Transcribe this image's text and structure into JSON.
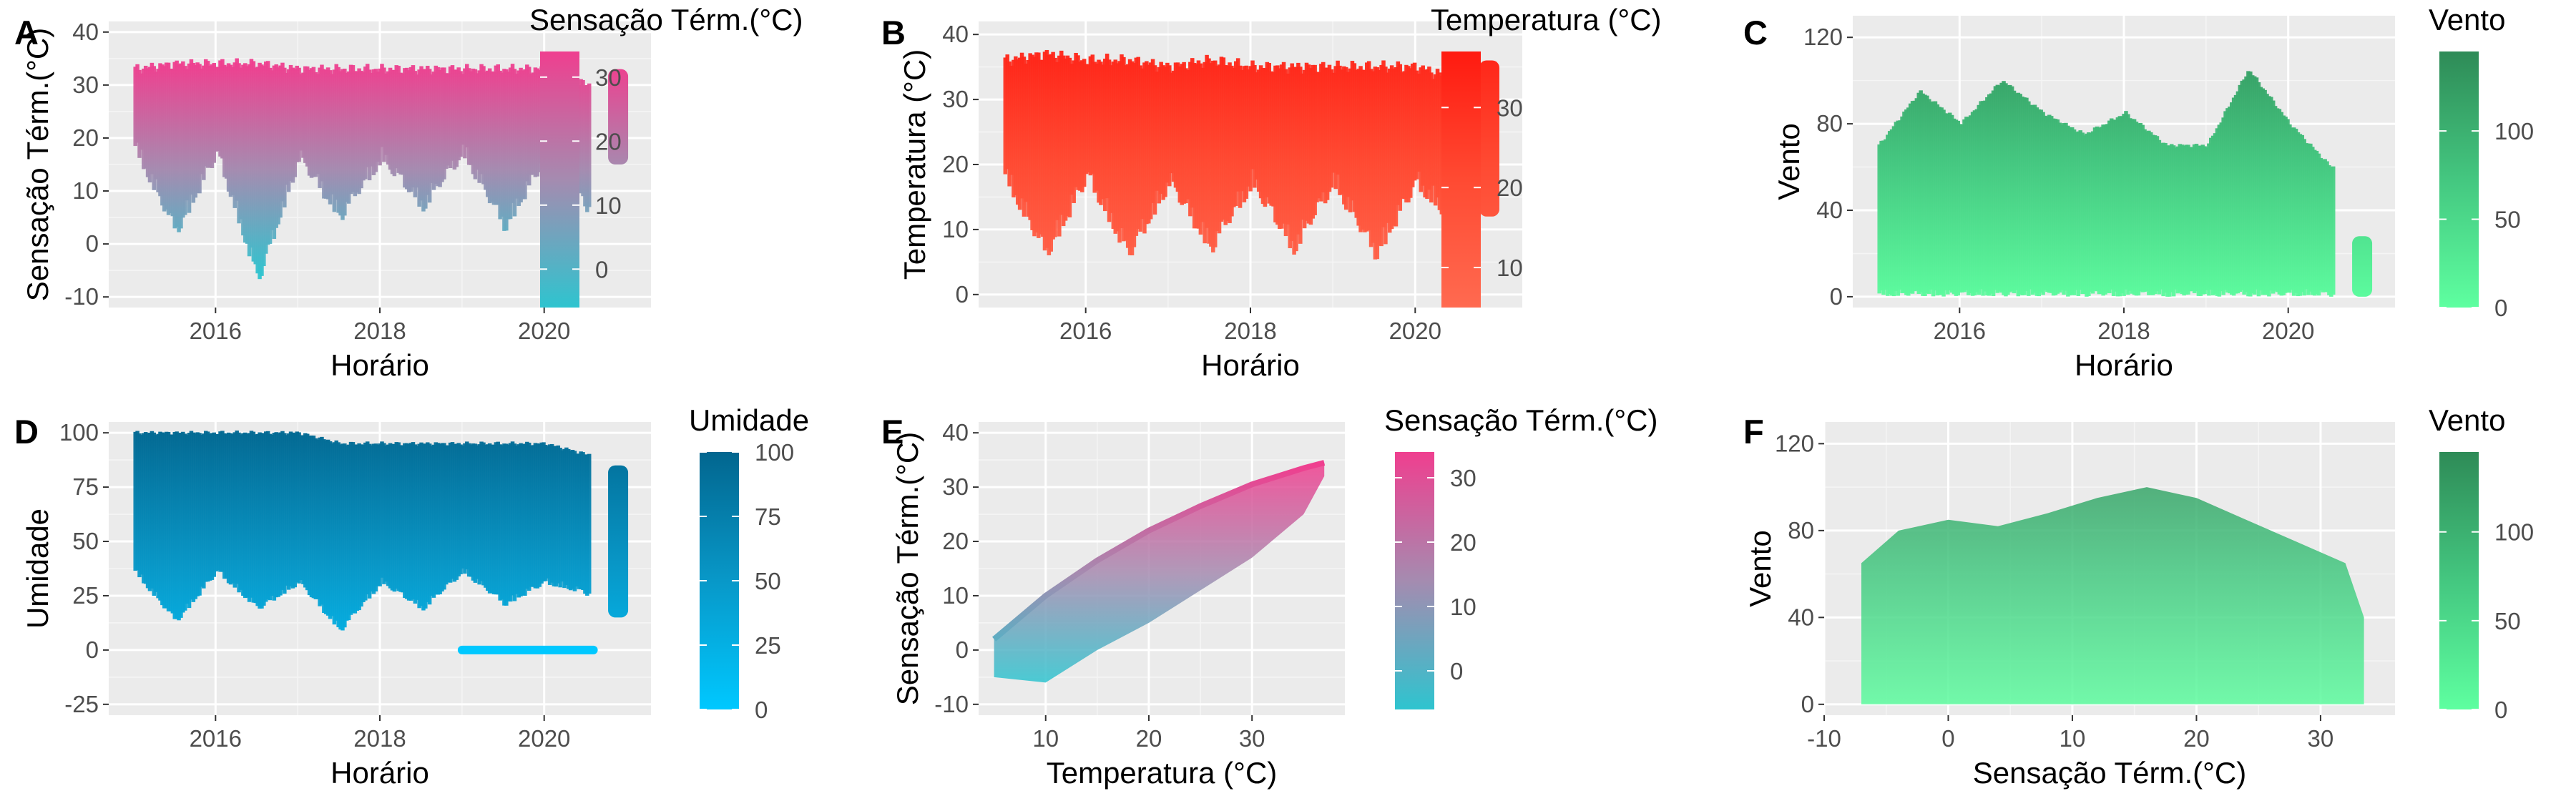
{
  "chart_data": [
    {
      "tag": "A",
      "type": "scatter",
      "xlabel": "Horário",
      "ylabel": "Sensação Térm.(°C)",
      "xlim": [
        2014.7,
        2021.3
      ],
      "ylim": [
        -12,
        42
      ],
      "xticks": [
        2016,
        2018,
        2020
      ],
      "yticks": [
        -10,
        0,
        10,
        20,
        30,
        40
      ],
      "legend": {
        "title": "Sensação Térm.(°C)",
        "position": "right",
        "range": [
          -6,
          34
        ],
        "ticks": [
          0,
          10,
          20,
          30
        ],
        "low_color": "#2ec4cf",
        "mid_color": "#a58bb0",
        "high_color": "#ef3f8f"
      },
      "band": [
        [
          2015.0,
          17,
          33
        ],
        [
          2015.5,
          1,
          34
        ],
        [
          2016.0,
          16,
          34
        ],
        [
          2016.5,
          -8,
          34
        ],
        [
          2017.0,
          15,
          33
        ],
        [
          2017.5,
          4,
          33
        ],
        [
          2018.0,
          15,
          33
        ],
        [
          2018.5,
          6,
          33
        ],
        [
          2019.0,
          16,
          33
        ],
        [
          2019.5,
          2,
          33
        ],
        [
          2020.0,
          15,
          33
        ],
        [
          2020.5,
          6,
          30
        ],
        [
          2020.9,
          15,
          33
        ]
      ],
      "gap": [
        2020.55,
        2020.8
      ]
    },
    {
      "tag": "B",
      "type": "scatter",
      "xlabel": "Horário",
      "ylabel": "Temperatura (°C)",
      "xlim": [
        2014.7,
        2021.3
      ],
      "ylim": [
        -2,
        42
      ],
      "xticks": [
        2016,
        2018,
        2020
      ],
      "yticks": [
        0,
        10,
        20,
        30,
        40
      ],
      "legend": {
        "title": "Temperatura (°C)",
        "position": "right",
        "range": [
          5,
          37
        ],
        "ticks": [
          10,
          20,
          30
        ],
        "low_color": "#ff6a50",
        "mid_color": "#ff4a32",
        "high_color": "#ff1a10"
      },
      "band": [
        [
          2015.0,
          17,
          36
        ],
        [
          2015.5,
          5,
          37
        ],
        [
          2016.0,
          17,
          36
        ],
        [
          2016.5,
          5,
          36
        ],
        [
          2017.0,
          16,
          35
        ],
        [
          2017.5,
          6,
          36
        ],
        [
          2018.0,
          16,
          35
        ],
        [
          2018.5,
          6,
          35
        ],
        [
          2019.0,
          16,
          35
        ],
        [
          2019.5,
          5,
          35
        ],
        [
          2020.0,
          16,
          35
        ],
        [
          2020.5,
          9,
          33
        ],
        [
          2020.9,
          12,
          36
        ]
      ],
      "gap": [
        2020.55,
        2020.8
      ]
    },
    {
      "tag": "C",
      "type": "scatter",
      "xlabel": "Horário",
      "ylabel": "Vento",
      "xlim": [
        2014.7,
        2021.3
      ],
      "ylim": [
        -5,
        130
      ],
      "xticks": [
        2016,
        2018,
        2020
      ],
      "yticks": [
        0,
        40,
        80,
        120
      ],
      "legend": {
        "title": "Vento",
        "position": "right",
        "range": [
          0,
          145
        ],
        "ticks": [
          0,
          50,
          100
        ],
        "low_color": "#5effa0",
        "mid_color": "#44c780",
        "high_color": "#2e8b57"
      },
      "band": [
        [
          2015.0,
          0,
          70
        ],
        [
          2015.5,
          0,
          95
        ],
        [
          2016.0,
          0,
          80
        ],
        [
          2016.5,
          0,
          100
        ],
        [
          2017.0,
          0,
          85
        ],
        [
          2017.5,
          0,
          75
        ],
        [
          2018.0,
          0,
          85
        ],
        [
          2018.5,
          0,
          70
        ],
        [
          2019.0,
          0,
          70
        ],
        [
          2019.5,
          0,
          105
        ],
        [
          2020.0,
          0,
          80
        ],
        [
          2020.5,
          0,
          60
        ],
        [
          2020.9,
          0,
          28
        ]
      ],
      "gap": [
        2020.55,
        2020.8
      ]
    },
    {
      "tag": "D",
      "type": "scatter",
      "xlabel": "Horário",
      "ylabel": "Umidade",
      "xlim": [
        2014.7,
        2021.3
      ],
      "ylim": [
        -30,
        105
      ],
      "xticks": [
        2016,
        2018,
        2020
      ],
      "yticks": [
        -25,
        0,
        25,
        50,
        75,
        100
      ],
      "legend": {
        "title": "Umidade",
        "position": "right",
        "range": [
          0,
          100
        ],
        "ticks": [
          0,
          25,
          50,
          75,
          100
        ],
        "low_color": "#00c8ff",
        "mid_color": "#0898c8",
        "high_color": "#02668f"
      },
      "band": [
        [
          2015.0,
          35,
          100
        ],
        [
          2015.5,
          12,
          100
        ],
        [
          2016.0,
          35,
          100
        ],
        [
          2016.5,
          18,
          100
        ],
        [
          2017.0,
          30,
          100
        ],
        [
          2017.5,
          8,
          95
        ],
        [
          2018.0,
          30,
          95
        ],
        [
          2018.5,
          18,
          95
        ],
        [
          2019.0,
          35,
          95
        ],
        [
          2019.5,
          20,
          95
        ],
        [
          2020.0,
          30,
          95
        ],
        [
          2020.5,
          25,
          90
        ],
        [
          2020.9,
          15,
          85
        ]
      ],
      "gap": [
        2020.55,
        2020.8
      ],
      "zero_line": [
        2019.0,
        2020.6
      ]
    },
    {
      "tag": "E",
      "type": "scatter",
      "xlabel": "Temperatura (°C)",
      "ylabel": "Sensação Térm.(°C)",
      "xlim": [
        3.5,
        39
      ],
      "ylim": [
        -12,
        42
      ],
      "xticks": [
        10,
        20,
        30
      ],
      "yticks": [
        -10,
        0,
        10,
        20,
        30,
        40
      ],
      "legend": {
        "title": "Sensação Térm.(°C)",
        "position": "right",
        "range": [
          -6,
          34
        ],
        "ticks": [
          0,
          10,
          20,
          30
        ],
        "low_color": "#2ec4cf",
        "mid_color": "#a58bb0",
        "high_color": "#ef3f8f"
      },
      "upper_curve": [
        [
          5,
          2
        ],
        [
          10,
          10
        ],
        [
          15,
          16.5
        ],
        [
          20,
          22
        ],
        [
          25,
          26.5
        ],
        [
          30,
          30.5
        ],
        [
          35,
          33.5
        ],
        [
          37,
          34.5
        ]
      ],
      "lower_curve": [
        [
          5,
          -5
        ],
        [
          10,
          -6
        ],
        [
          15,
          0
        ],
        [
          20,
          5
        ],
        [
          25,
          11
        ],
        [
          30,
          17
        ],
        [
          35,
          25
        ],
        [
          37,
          32
        ]
      ]
    },
    {
      "tag": "F",
      "type": "scatter",
      "xlabel": "Sensação Térm.(°C)",
      "ylabel": "Vento",
      "xlim": [
        -10,
        36
      ],
      "ylim": [
        -5,
        130
      ],
      "xticks": [
        -10,
        0,
        10,
        20,
        30
      ],
      "yticks": [
        0,
        40,
        80,
        120
      ],
      "legend": {
        "title": "Vento",
        "position": "right",
        "range": [
          0,
          145
        ],
        "ticks": [
          0,
          50,
          100
        ],
        "low_color": "#5effa0",
        "mid_color": "#44c780",
        "high_color": "#2e8b57"
      },
      "outline": [
        [
          -7,
          65
        ],
        [
          -4,
          80
        ],
        [
          0,
          85
        ],
        [
          4,
          82
        ],
        [
          8,
          88
        ],
        [
          12,
          95
        ],
        [
          16,
          100
        ],
        [
          20,
          95
        ],
        [
          24,
          85
        ],
        [
          28,
          75
        ],
        [
          32,
          65
        ],
        [
          33.5,
          40
        ],
        [
          33.5,
          0
        ],
        [
          -7,
          0
        ]
      ]
    }
  ]
}
